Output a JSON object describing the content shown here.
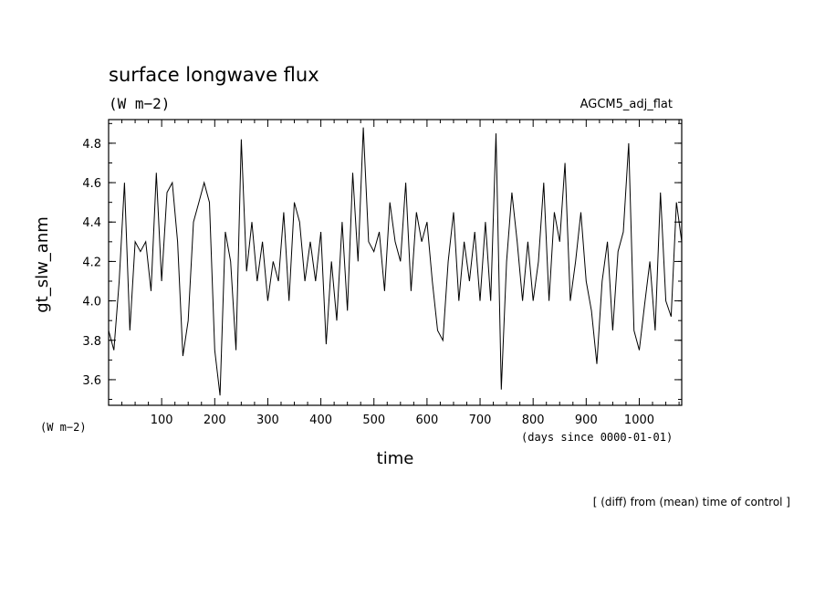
{
  "chart_data": {
    "type": "line",
    "title": "surface longwave flux",
    "subtitle": "(W m−2)",
    "experiment": "AGCM5_adj_flat",
    "ylabel": "gt_slw_anm",
    "yunits": "(W m−2)",
    "xlabel": "time",
    "xunits": "(days since 0000-01-01)",
    "footnote": "[ (diff) from (mean) time of control ]",
    "xlim": [
      0,
      1080
    ],
    "ylim": [
      3.47,
      4.92
    ],
    "grid": false,
    "x_ticks": [
      100,
      200,
      300,
      400,
      500,
      600,
      700,
      800,
      900,
      1000
    ],
    "x_tick_labels": [
      "100",
      "200",
      "300",
      "400",
      "500",
      "600",
      "700",
      "800",
      "900",
      "1000"
    ],
    "y_ticks": [
      3.6,
      3.8,
      4.0,
      4.2,
      4.4,
      4.6,
      4.8
    ],
    "y_tick_labels": [
      "3.6",
      "3.8",
      "4.0",
      "4.2",
      "4.4",
      "4.6",
      "4.8"
    ],
    "series": [
      {
        "x": [
          0,
          10,
          20,
          30,
          40,
          50,
          60,
          70,
          80,
          90,
          100,
          110,
          120,
          130,
          140,
          150,
          160,
          170,
          180,
          190,
          200,
          210,
          220,
          230,
          240,
          250,
          260,
          270,
          280,
          290,
          300,
          310,
          320,
          330,
          340,
          350,
          360,
          370,
          380,
          390,
          400,
          410,
          420,
          430,
          440,
          450,
          460,
          470,
          480,
          490,
          500,
          510,
          520,
          530,
          540,
          550,
          560,
          570,
          580,
          590,
          600,
          610,
          620,
          630,
          640,
          650,
          660,
          670,
          680,
          690,
          700,
          710,
          720,
          730,
          740,
          750,
          760,
          770,
          780,
          790,
          800,
          810,
          820,
          830,
          840,
          850,
          860,
          870,
          880,
          890,
          900,
          910,
          920,
          930,
          940,
          950,
          960,
          970,
          980,
          990,
          1000,
          1010,
          1020,
          1030,
          1040,
          1050,
          1060,
          1070,
          1080
        ],
        "values": [
          3.85,
          3.75,
          4.1,
          4.6,
          3.85,
          4.3,
          4.25,
          4.3,
          4.05,
          4.65,
          4.1,
          4.55,
          4.6,
          4.3,
          3.72,
          3.9,
          4.4,
          4.5,
          4.6,
          4.5,
          3.75,
          3.52,
          4.35,
          4.2,
          3.75,
          4.82,
          4.15,
          4.4,
          4.1,
          4.3,
          4.0,
          4.2,
          4.1,
          4.45,
          4.0,
          4.5,
          4.4,
          4.1,
          4.3,
          4.1,
          4.35,
          3.78,
          4.2,
          3.9,
          4.4,
          3.95,
          4.65,
          4.2,
          4.88,
          4.3,
          4.25,
          4.35,
          4.05,
          4.5,
          4.3,
          4.2,
          4.6,
          4.05,
          4.45,
          4.3,
          4.4,
          4.1,
          3.85,
          3.8,
          4.2,
          4.45,
          4.0,
          4.3,
          4.1,
          4.35,
          4.0,
          4.4,
          4.0,
          4.85,
          3.55,
          4.2,
          4.55,
          4.3,
          4.0,
          4.3,
          4.0,
          4.2,
          4.6,
          4.0,
          4.45,
          4.3,
          4.7,
          4.0,
          4.2,
          4.45,
          4.1,
          3.95,
          3.68,
          4.1,
          4.3,
          3.85,
          4.25,
          4.35,
          4.8,
          3.85,
          3.75,
          3.98,
          4.2,
          3.85,
          4.55,
          4.0,
          3.92,
          4.5,
          4.3
        ]
      }
    ]
  }
}
